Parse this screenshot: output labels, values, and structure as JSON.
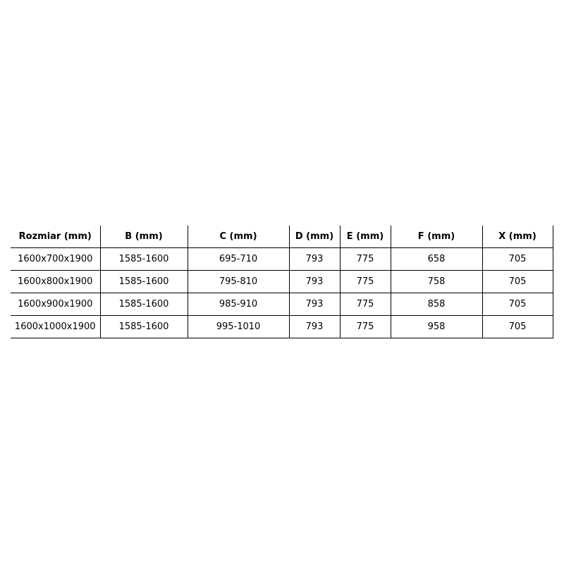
{
  "table": {
    "headers": [
      "Rozmiar (mm)",
      "B (mm)",
      "C (mm)",
      "D (mm)",
      "E (mm)",
      "F (mm)",
      "X (mm)"
    ],
    "rows": [
      [
        "1600x700x1900",
        "1585-1600",
        "695-710",
        "793",
        "775",
        "658",
        "705"
      ],
      [
        "1600x800x1900",
        "1585-1600",
        "795-810",
        "793",
        "775",
        "758",
        "705"
      ],
      [
        "1600x900x1900",
        "1585-1600",
        "985-910",
        "793",
        "775",
        "858",
        "705"
      ],
      [
        "1600x1000x1900",
        "1585-1600",
        "995-1010",
        "793",
        "775",
        "958",
        "705"
      ]
    ]
  }
}
